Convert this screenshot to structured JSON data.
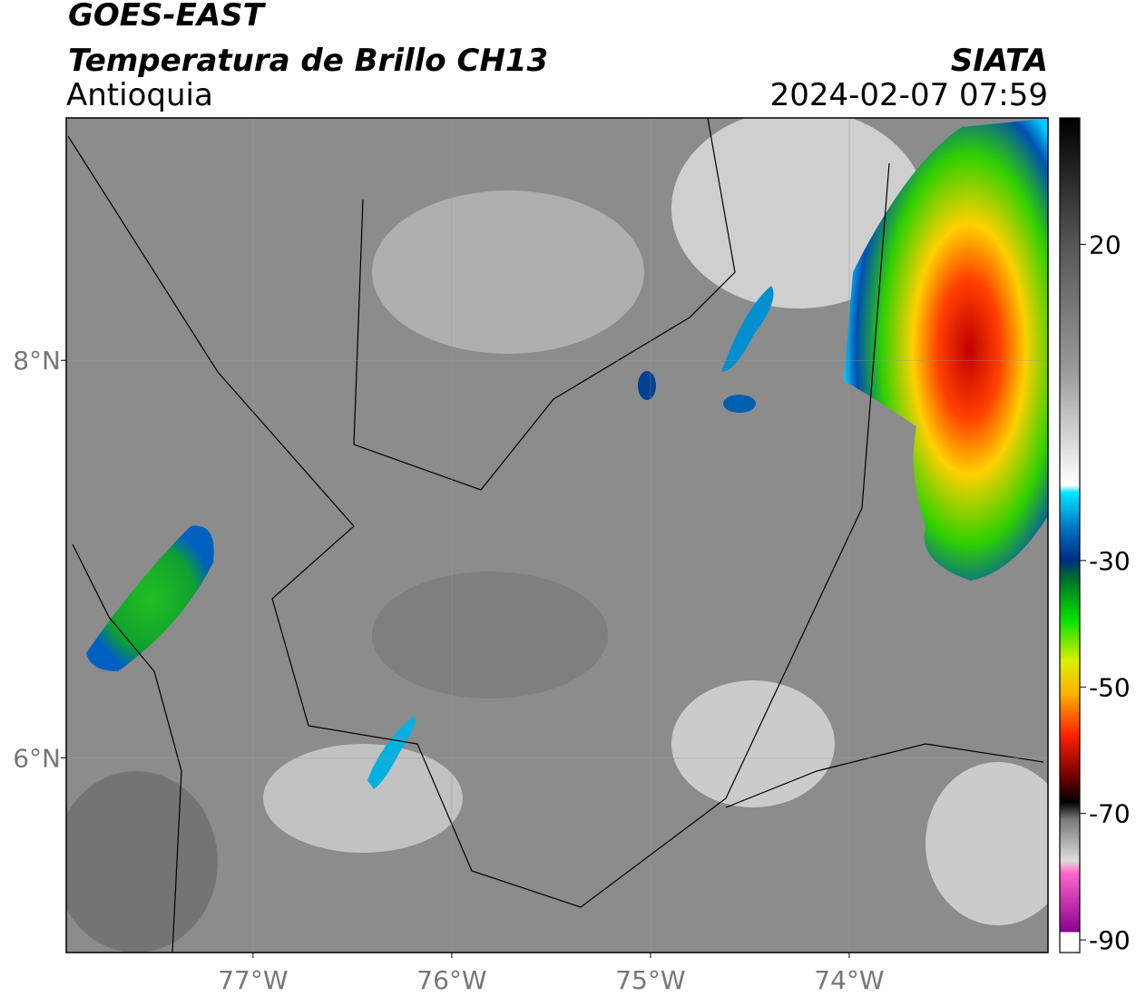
{
  "header": {
    "satellite": "GOES-EAST",
    "product": "Temperatura de Brillo CH13",
    "region": "Antioquia",
    "source": "SIATA",
    "datetime": "2024-02-07 07:59"
  },
  "map": {
    "xlim": [
      -77.94,
      -73.0
    ],
    "ylim": [
      5.02,
      9.22
    ],
    "xticks": [
      {
        "value": -77,
        "label": "77°W"
      },
      {
        "value": -76,
        "label": "76°W"
      },
      {
        "value": -75,
        "label": "75°W"
      },
      {
        "value": -74,
        "label": "74°W"
      }
    ],
    "yticks": [
      {
        "value": 8,
        "label": "8°N"
      },
      {
        "value": 6,
        "label": "6°N"
      }
    ],
    "grid": true
  },
  "colorbar": {
    "lim": [
      -92,
      40
    ],
    "ticks": [
      20,
      -30,
      -50,
      -70,
      -90
    ]
  }
}
